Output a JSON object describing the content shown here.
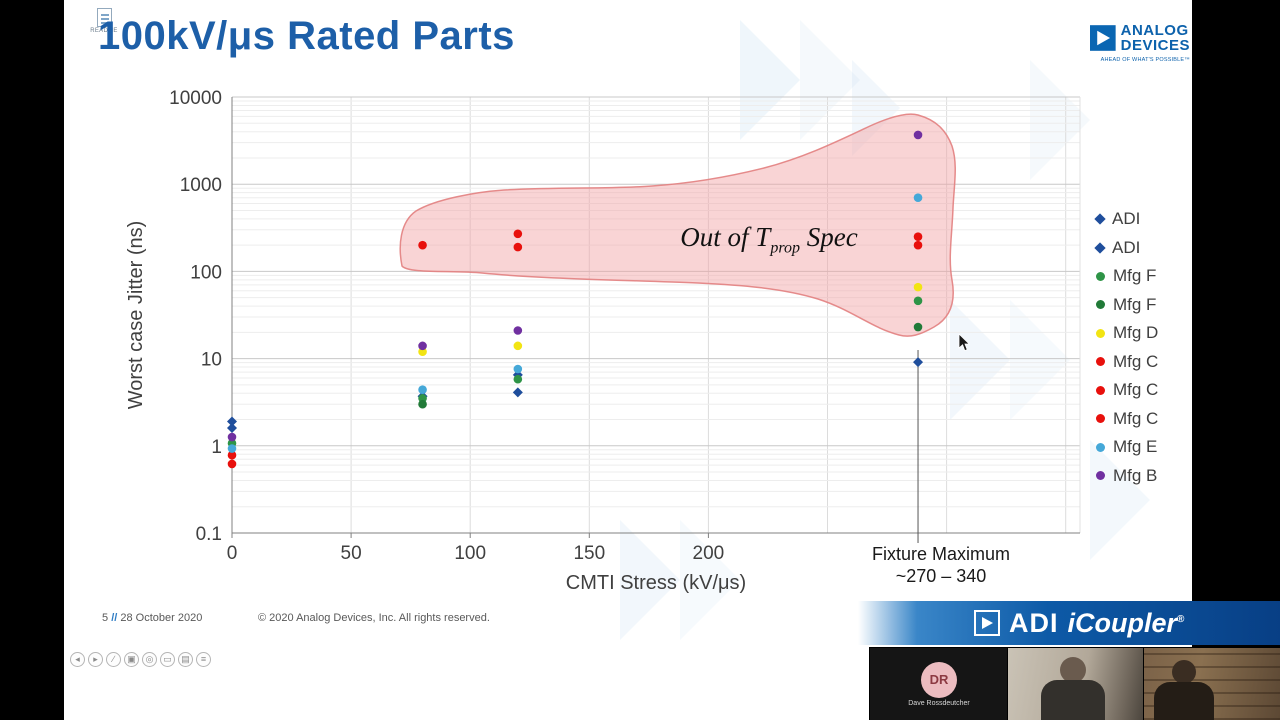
{
  "slide": {
    "title": "100kV/μs Rated Parts",
    "readme_label": "README"
  },
  "adi_logo": {
    "line1": "ANALOG",
    "line2": "DEVICES",
    "tagline": "AHEAD OF WHAT'S POSSIBLE™"
  },
  "chart_data": {
    "type": "scatter",
    "title": "",
    "xlabel": "CMTI Stress (kV/μs)",
    "ylabel": "Worst case Jitter (ns)",
    "x_ticks": [
      0,
      50,
      100,
      150,
      200
    ],
    "xlim": [
      0,
      356
    ],
    "y_scale": "log",
    "y_ticks": [
      "10000",
      "1000",
      "100",
      "10",
      "1",
      "0.1"
    ],
    "ylim": [
      0.1,
      10000
    ],
    "grid": true,
    "legend_position": "right",
    "annotation": {
      "prefix": "Out of T",
      "subscript": "prop",
      "suffix": " Spec"
    },
    "fixture_max": {
      "line1": "Fixture Maximum",
      "line2": "~270 – 340",
      "x": 288
    },
    "series": [
      {
        "name": "ADI",
        "marker": "diamond",
        "color": "#1f4e9c",
        "points": [
          [
            0,
            1.9
          ],
          [
            80,
            3.7
          ],
          [
            120,
            6.5
          ],
          [
            288,
            9.1
          ]
        ]
      },
      {
        "name": "ADI",
        "marker": "diamond",
        "color": "#1f4e9c",
        "points": [
          [
            0,
            1.6
          ],
          [
            120,
            4.1
          ]
        ]
      },
      {
        "name": "Mfg F",
        "marker": "circle",
        "color": "#2e9447",
        "points": [
          [
            0,
            1.07
          ],
          [
            80,
            3.5
          ],
          [
            120,
            5.8
          ],
          [
            288,
            46
          ]
        ]
      },
      {
        "name": "Mfg F",
        "marker": "circle",
        "color": "#217a38",
        "points": [
          [
            80,
            3.0
          ],
          [
            288,
            23
          ]
        ]
      },
      {
        "name": "Mfg D",
        "marker": "circle",
        "color": "#f2e413",
        "points": [
          [
            80,
            12
          ],
          [
            120,
            14
          ],
          [
            288,
            66
          ]
        ]
      },
      {
        "name": "Mfg C",
        "marker": "circle",
        "color": "#e8100c",
        "points": [
          [
            80,
            200
          ],
          [
            120,
            270
          ],
          [
            288,
            250
          ]
        ]
      },
      {
        "name": "Mfg C",
        "marker": "circle",
        "color": "#e8100c",
        "points": [
          [
            0,
            0.78
          ],
          [
            120,
            190
          ],
          [
            288,
            200
          ]
        ]
      },
      {
        "name": "Mfg C",
        "marker": "circle",
        "color": "#e8100c",
        "points": [
          [
            0,
            0.62
          ]
        ]
      },
      {
        "name": "Mfg E",
        "marker": "circle",
        "color": "#45a8d8",
        "points": [
          [
            0,
            0.93
          ],
          [
            80,
            4.4
          ],
          [
            120,
            7.6
          ],
          [
            288,
            700
          ]
        ]
      },
      {
        "name": "Mfg B",
        "marker": "circle",
        "color": "#7030a0",
        "points": [
          [
            0,
            1.26
          ],
          [
            80,
            14
          ],
          [
            120,
            21
          ],
          [
            288,
            3670
          ]
        ]
      }
    ]
  },
  "footer": {
    "page": "5",
    "sep": "//",
    "date": "28 October 2020",
    "copyright": "© 2020 Analog Devices, Inc. All rights reserved."
  },
  "icoupler": {
    "adi": "ADI",
    "product": "iCoupler",
    "reg": "®"
  },
  "player_controls": [
    {
      "name": "previous",
      "glyph": "◂"
    },
    {
      "name": "next",
      "glyph": "▸"
    },
    {
      "name": "pen",
      "glyph": "∕"
    },
    {
      "name": "highlighter",
      "glyph": "▣"
    },
    {
      "name": "zoom",
      "glyph": "◎"
    },
    {
      "name": "rectangle-select",
      "glyph": "▭"
    },
    {
      "name": "notes",
      "glyph": "▤"
    },
    {
      "name": "menu",
      "glyph": "≡"
    }
  ],
  "video_bar": {
    "participant_initials": "DR",
    "participant_name": "Dave Rossdeutcher"
  }
}
